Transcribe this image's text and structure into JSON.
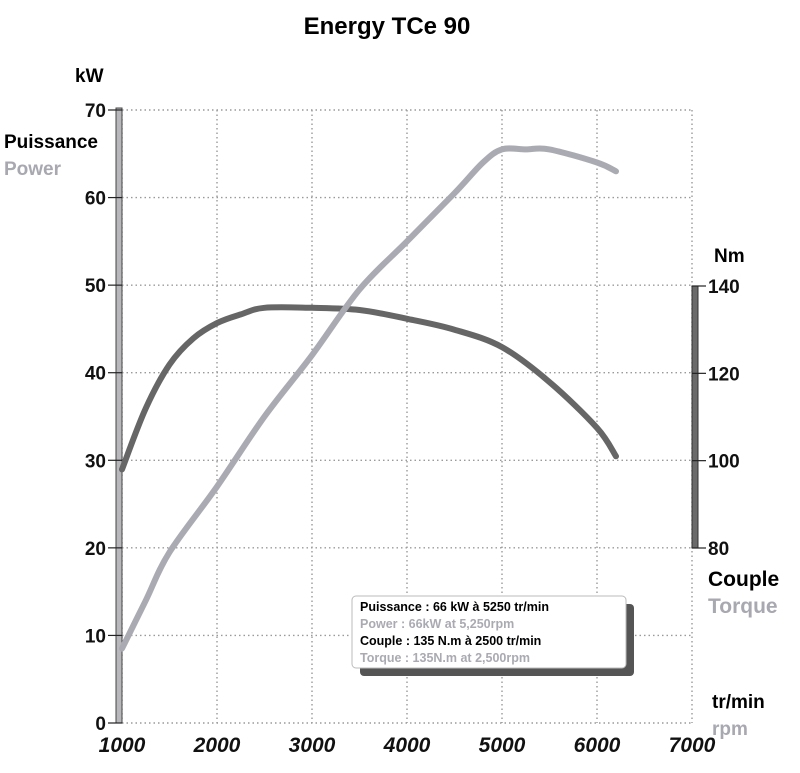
{
  "chart_data": {
    "type": "line",
    "title": "Energy TCe 90",
    "x_axis": {
      "ticks": [
        1000,
        2000,
        3000,
        4000,
        5000,
        6000,
        7000
      ],
      "range": [
        1000,
        7000
      ],
      "label_fr": "tr/min",
      "label_en": "rpm"
    },
    "y_left": {
      "unit": "kW",
      "label_fr": "Puissance",
      "label_en": "Power",
      "ticks": [
        0,
        10,
        20,
        30,
        40,
        50,
        60,
        70
      ],
      "range": [
        0,
        70
      ]
    },
    "y_right": {
      "unit": "Nm",
      "label_fr": "Couple",
      "label_en": "Torque",
      "ticks": [
        80,
        100,
        120,
        140
      ],
      "range": [
        80,
        140
      ]
    },
    "grid": true,
    "series": [
      {
        "name": "Power",
        "axis": "left",
        "color": "#aaaab2",
        "x": [
          1000,
          1250,
          1500,
          2000,
          2500,
          3000,
          3500,
          4000,
          4500,
          4800,
          5000,
          5250,
          5500,
          6000,
          6200
        ],
        "y": [
          8.5,
          14,
          19.5,
          27,
          35,
          42,
          49.5,
          55,
          60.5,
          64,
          65.5,
          65.5,
          65.5,
          64,
          63
        ]
      },
      {
        "name": "Torque",
        "axis": "right",
        "color": "#666666",
        "x": [
          1000,
          1250,
          1500,
          1750,
          2000,
          2250,
          2500,
          3000,
          3500,
          4000,
          4500,
          5000,
          5500,
          6000,
          6200
        ],
        "y": [
          98,
          112,
          122,
          128,
          131.5,
          133.5,
          135,
          135,
          134.5,
          132.5,
          130,
          126,
          118,
          107.5,
          101
        ]
      }
    ],
    "legend": {
      "placement": "bottom-right",
      "lines": [
        {
          "text": "Puissance : 66 kW à 5250 tr/min",
          "color": "#000000"
        },
        {
          "text": "Power : 66kW at 5,250rpm",
          "color": "#aaaab2"
        },
        {
          "text": "Couple : 135 N.m à 2500 tr/min",
          "color": "#000000"
        },
        {
          "text": "Torque : 135N.m at 2,500rpm",
          "color": "#aaaab2"
        }
      ]
    }
  }
}
